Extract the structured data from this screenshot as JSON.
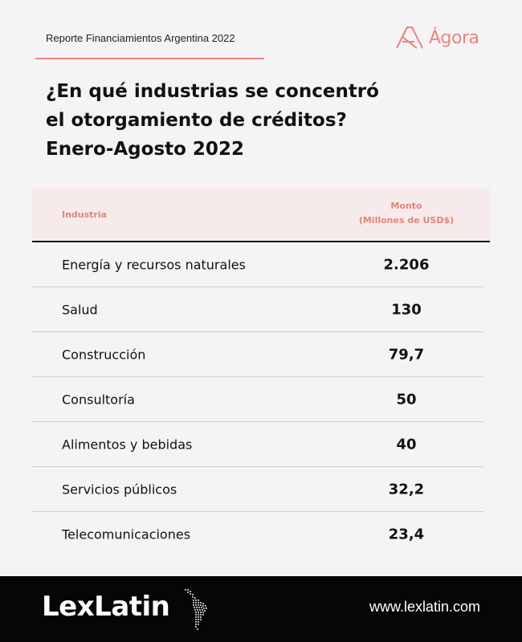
{
  "header": {
    "report_label": "Reporte Financiamientos Argentina 2022",
    "brand_name": "Ágora",
    "brand_color": "#e9867f"
  },
  "title": {
    "line1": "¿En qué industrias se concentró",
    "line2": "el otorgamiento de créditos?",
    "line3": "Enero-Agosto 2022"
  },
  "table": {
    "columns": {
      "industry": "Industria",
      "amount_line1": "Monto",
      "amount_line2": "(Millones de USD$)"
    },
    "rows": [
      {
        "industry": "Energía y recursos naturales",
        "amount": "2.206"
      },
      {
        "industry": "Salud",
        "amount": "130"
      },
      {
        "industry": "Construcción",
        "amount": "79,7"
      },
      {
        "industry": "Consultoría",
        "amount": "50"
      },
      {
        "industry": "Alimentos y bebidas",
        "amount": "40"
      },
      {
        "industry": "Servicios públicos",
        "amount": "32,2"
      },
      {
        "industry": "Telecomunicaciones",
        "amount": "23,4"
      }
    ]
  },
  "footer": {
    "logo_text": "LexLatin",
    "map_icon": "latin-america-map-icon",
    "url": "www.lexlatin.com"
  }
}
